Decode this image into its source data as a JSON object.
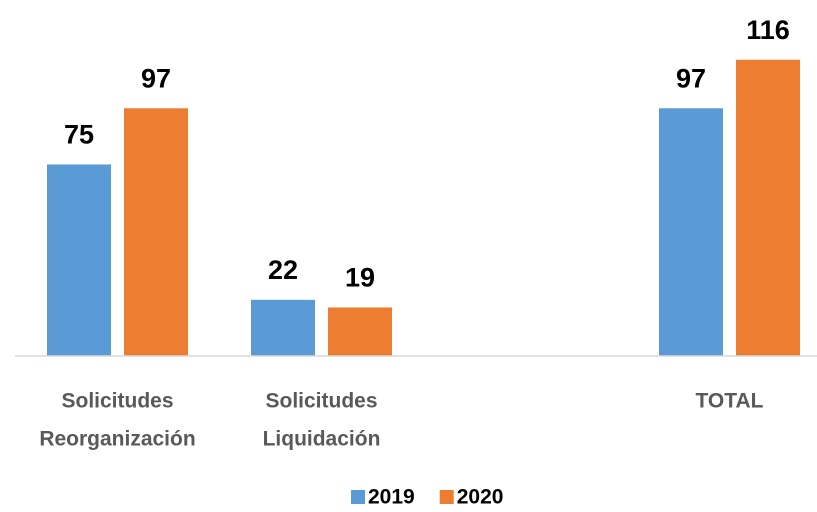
{
  "chart_data": {
    "type": "bar",
    "categories": [
      [
        "Solicitudes",
        "Reorganización"
      ],
      [
        "Solicitudes",
        "Liquidación"
      ],
      null,
      [
        "TOTAL"
      ]
    ],
    "series": [
      {
        "name": "2019",
        "color": "#5b9bd5",
        "values": [
          75,
          22,
          null,
          97
        ]
      },
      {
        "name": "2020",
        "color": "#ed7d31",
        "values": [
          97,
          19,
          null,
          116
        ]
      }
    ],
    "ylim": [
      0,
      130
    ],
    "legend": "bottom"
  }
}
